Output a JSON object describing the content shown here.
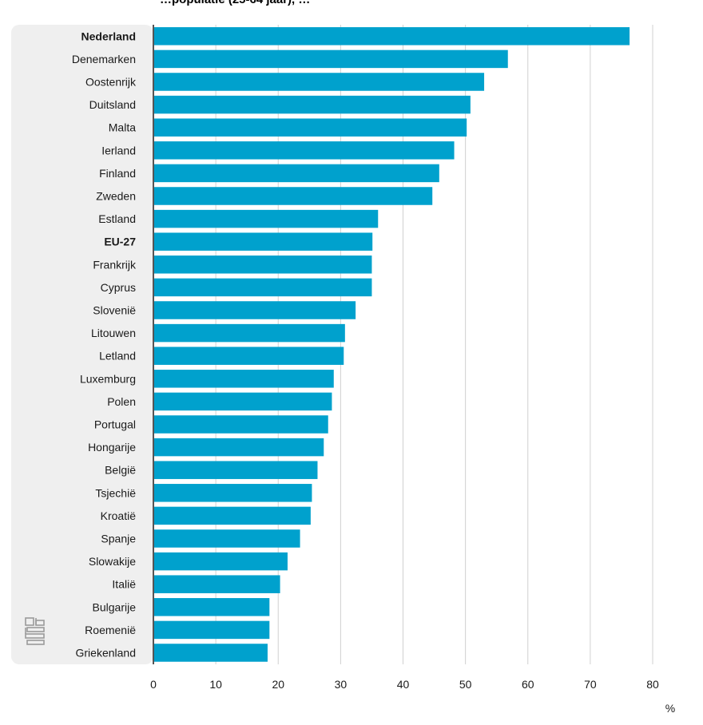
{
  "title_partial": "…populatie (25-64 jaar), …",
  "chart_data": {
    "type": "bar",
    "orientation": "horizontal",
    "categories": [
      "Nederland",
      "Denemarken",
      "Oostenrijk",
      "Duitsland",
      "Malta",
      "Ierland",
      "Finland",
      "Zweden",
      "Estland",
      "EU-27",
      "Frankrijk",
      "Cyprus",
      "Slovenië",
      "Litouwen",
      "Letland",
      "Luxemburg",
      "Polen",
      "Portugal",
      "Hongarije",
      "België",
      "Tsjechië",
      "Kroatië",
      "Spanje",
      "Slowakije",
      "Italië",
      "Bulgarije",
      "Roemenië",
      "Griekenland"
    ],
    "bold_categories": [
      "Nederland",
      "EU-27"
    ],
    "values": [
      76.3,
      56.8,
      53.0,
      50.8,
      50.2,
      48.2,
      45.8,
      44.7,
      36.0,
      35.1,
      35.0,
      35.0,
      32.4,
      30.7,
      30.5,
      28.9,
      28.6,
      28.0,
      27.3,
      26.3,
      25.4,
      25.2,
      23.5,
      21.5,
      20.3,
      18.6,
      18.6,
      18.3
    ],
    "xlim": [
      0,
      80
    ],
    "xticks": [
      0,
      10,
      20,
      30,
      40,
      50,
      60,
      70,
      80
    ],
    "xunit": "%",
    "grid": true,
    "bar_color": "#00a1cd",
    "panel_color": "#efefef",
    "gridline_color": "#d0d0d0",
    "axis_color": "#555555"
  },
  "logo": {
    "name": "cbs-logo-icon"
  }
}
